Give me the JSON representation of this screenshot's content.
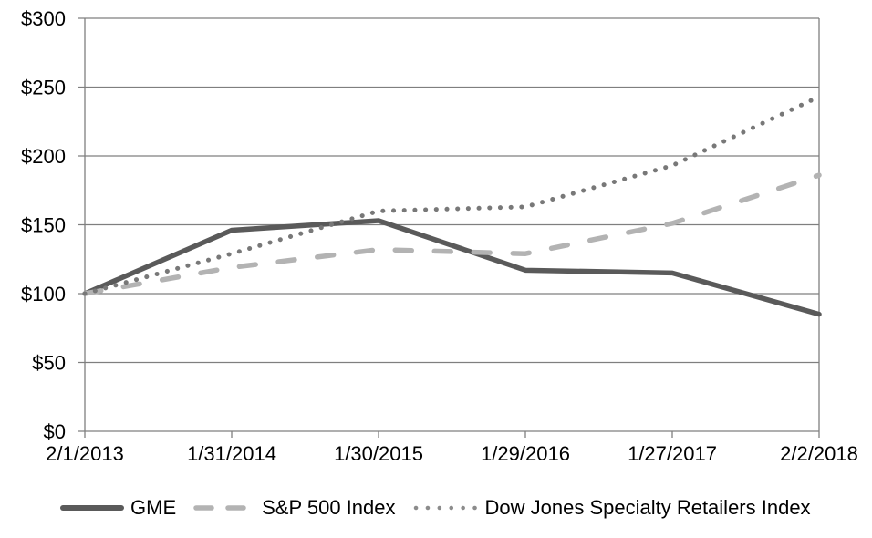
{
  "chart_data": {
    "type": "line",
    "title": "",
    "xlabel": "",
    "ylabel": "",
    "categories": [
      "2/1/2013",
      "1/31/2014",
      "1/30/2015",
      "1/29/2016",
      "1/27/2017",
      "2/2/2018"
    ],
    "series": [
      {
        "name": "GME",
        "style": "solid",
        "color": "#5a5a5a",
        "values": [
          100,
          146,
          153,
          117,
          115,
          85
        ]
      },
      {
        "name": "S&P 500 Index",
        "style": "dashed",
        "color": "#b3b3b3",
        "values": [
          100,
          119,
          132,
          129,
          151,
          186
        ]
      },
      {
        "name": "Dow Jones Specialty Retailers Index",
        "style": "dotted",
        "color": "#787878",
        "values": [
          100,
          129,
          160,
          163,
          193,
          243
        ]
      }
    ],
    "y_axis": {
      "tick_labels": [
        "$0",
        "$50",
        "$100",
        "$150",
        "$200",
        "$250",
        "$300"
      ],
      "tick_values": [
        0,
        50,
        100,
        150,
        200,
        250,
        300
      ],
      "min": 0,
      "max": 300
    },
    "grid": true,
    "legend_position": "bottom",
    "axis_color": "#7f7f7f",
    "text_color": "#000000"
  }
}
